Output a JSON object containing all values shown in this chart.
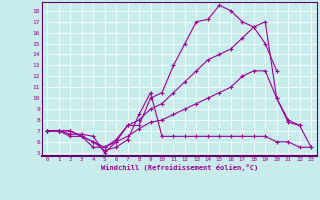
{
  "xlabel": "Windchill (Refroidissement éolien,°C)",
  "background_color": "#c8ecec",
  "grid_color": "#aad4d4",
  "border_color": "#660066",
  "line_color": "#990099",
  "xlim": [
    -0.5,
    23.5
  ],
  "ylim": [
    4.7,
    18.8
  ],
  "yticks": [
    5,
    6,
    7,
    8,
    9,
    10,
    11,
    12,
    13,
    14,
    15,
    16,
    17,
    18
  ],
  "xticks": [
    0,
    1,
    2,
    3,
    4,
    5,
    6,
    7,
    8,
    9,
    10,
    11,
    12,
    13,
    14,
    15,
    16,
    17,
    18,
    19,
    20,
    21,
    22,
    23
  ],
  "series": [
    [
      7.0,
      7.0,
      6.7,
      6.7,
      6.5,
      5.0,
      6.0,
      7.5,
      7.5,
      10.0,
      10.5,
      13.0,
      15.0,
      17.0,
      17.2,
      18.5,
      18.0,
      17.0,
      16.5,
      15.0,
      12.5,
      null,
      null,
      null
    ],
    [
      7.0,
      7.0,
      6.5,
      6.5,
      5.5,
      5.5,
      6.2,
      7.5,
      8.0,
      9.0,
      9.5,
      10.5,
      11.5,
      12.5,
      13.5,
      14.0,
      14.5,
      15.5,
      16.5,
      17.0,
      10.0,
      7.8,
      7.5,
      null
    ],
    [
      7.0,
      7.0,
      7.0,
      6.5,
      6.0,
      5.5,
      6.0,
      6.5,
      7.2,
      7.8,
      8.0,
      8.5,
      9.0,
      9.5,
      10.0,
      10.5,
      11.0,
      12.0,
      12.5,
      12.5,
      10.0,
      8.0,
      7.5,
      5.5
    ],
    [
      7.0,
      7.0,
      7.0,
      6.5,
      6.0,
      5.2,
      5.5,
      6.2,
      8.5,
      10.5,
      6.5,
      6.5,
      6.5,
      6.5,
      6.5,
      6.5,
      6.5,
      6.5,
      6.5,
      6.5,
      6.0,
      6.0,
      5.5,
      5.5
    ]
  ]
}
